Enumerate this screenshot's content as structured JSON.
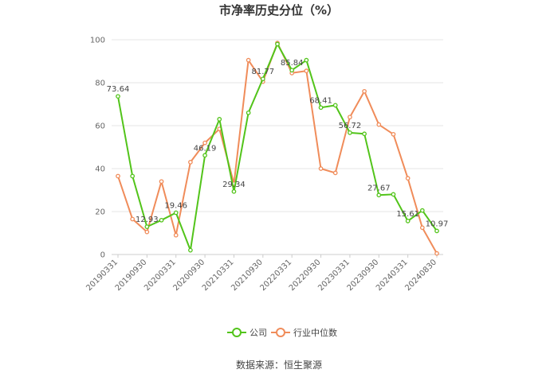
{
  "chart_data": {
    "type": "line",
    "title": "市净率历史分位（%）",
    "source": "数据来源：恒生聚源",
    "ylim": [
      0,
      100
    ],
    "yticks": [
      0,
      20,
      40,
      60,
      80,
      100
    ],
    "x_tick_labels": [
      "20190331",
      "20190930",
      "20200331",
      "20200930",
      "20210331",
      "20210930",
      "20220331",
      "20220930",
      "20230331",
      "20230930",
      "20240331",
      "20240830"
    ],
    "x": [
      "20190331",
      "20190630",
      "20190930",
      "20191231",
      "20200331",
      "20200630",
      "20200930",
      "20201231",
      "20210331",
      "20210630",
      "20210930",
      "20211231",
      "20220331",
      "20220630",
      "20220930",
      "20221231",
      "20230331",
      "20230630",
      "20230930",
      "20231231",
      "20240331",
      "20240630",
      "20240830"
    ],
    "series": [
      {
        "name": "公司",
        "color": "#52c41a",
        "values": [
          73.64,
          36.5,
          12.93,
          16,
          19.46,
          2,
          46.19,
          63,
          29.34,
          66,
          81.77,
          98,
          85.84,
          90.5,
          68.41,
          69.5,
          56.72,
          56.2,
          27.67,
          28,
          15.61,
          20.5,
          10.97
        ]
      },
      {
        "name": "行业中位数",
        "color": "#f08c5a",
        "values": [
          36.5,
          16.5,
          10.5,
          34,
          9,
          43,
          52,
          58.5,
          33,
          90.5,
          80.5,
          98.5,
          84.5,
          85.5,
          40,
          38,
          64,
          76,
          60.5,
          56,
          35.5,
          12.5,
          0.5
        ]
      }
    ],
    "data_labels": [
      {
        "series": 0,
        "index": 0,
        "text": "73.64"
      },
      {
        "series": 0,
        "index": 2,
        "text": "12.93"
      },
      {
        "series": 0,
        "index": 4,
        "text": "19.46"
      },
      {
        "series": 0,
        "index": 6,
        "text": "46.19"
      },
      {
        "series": 0,
        "index": 8,
        "text": "29.34"
      },
      {
        "series": 0,
        "index": 10,
        "text": "81.77"
      },
      {
        "series": 0,
        "index": 12,
        "text": "85.84"
      },
      {
        "series": 0,
        "index": 14,
        "text": "68.41"
      },
      {
        "series": 0,
        "index": 16,
        "text": "56.72"
      },
      {
        "series": 0,
        "index": 18,
        "text": "27.67"
      },
      {
        "series": 0,
        "index": 20,
        "text": "15.61"
      },
      {
        "series": 0,
        "index": 22,
        "text": "10.97"
      }
    ],
    "grid": "horizontal",
    "legend": "bottom-center"
  }
}
